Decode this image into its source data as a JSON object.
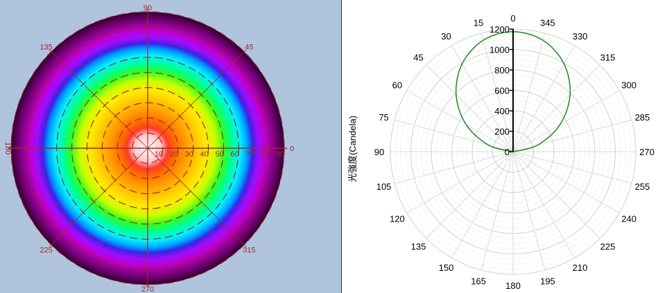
{
  "chart_data": [
    {
      "type": "heatmap",
      "subtype": "polar-intensity-map",
      "angle_ticks": [
        "0",
        "45",
        "90",
        "135",
        "180",
        "225",
        "270",
        "315"
      ],
      "radial_ticks": [
        "10",
        "20",
        "30",
        "40",
        "50",
        "60",
        "70",
        "80",
        "90"
      ],
      "radial_range": [
        0,
        90
      ],
      "colormap": [
        "#ffffff",
        "#ffc8c8",
        "#ff3a2a",
        "#ff6a00",
        "#ffa800",
        "#ffe800",
        "#c8ff00",
        "#30ff20",
        "#00ff9a",
        "#00f0ff",
        "#00a0ff",
        "#3020ff",
        "#9a10ff",
        "#c000d0",
        "#800080",
        "#300030"
      ],
      "grid_color": "#a02828",
      "background": "#b0c4de"
    },
    {
      "type": "line",
      "subtype": "polar",
      "ylabel": "光強度(Candela)",
      "angle_ticks": [
        "0",
        "15",
        "30",
        "45",
        "60",
        "75",
        "90",
        "105",
        "120",
        "135",
        "150",
        "165",
        "180",
        "195",
        "210",
        "225",
        "240",
        "255",
        "270",
        "285",
        "300",
        "315",
        "330",
        "345"
      ],
      "angle_direction": "counterclockwise",
      "zero_location": "top",
      "radial_ticks": [
        "0",
        "200",
        "400",
        "600",
        "800",
        "1000",
        "1200"
      ],
      "radial_range": [
        0,
        1200
      ],
      "grid": true,
      "series": [
        {
          "color": "#1a8a1a",
          "angles": [
            -90,
            -75,
            -60,
            -45,
            -30,
            -15,
            0,
            15,
            30,
            45,
            60,
            75,
            90
          ],
          "values": [
            0,
            248,
            530,
            788,
            995,
            1129,
            1175,
            1129,
            995,
            788,
            530,
            248,
            0
          ]
        }
      ]
    }
  ]
}
